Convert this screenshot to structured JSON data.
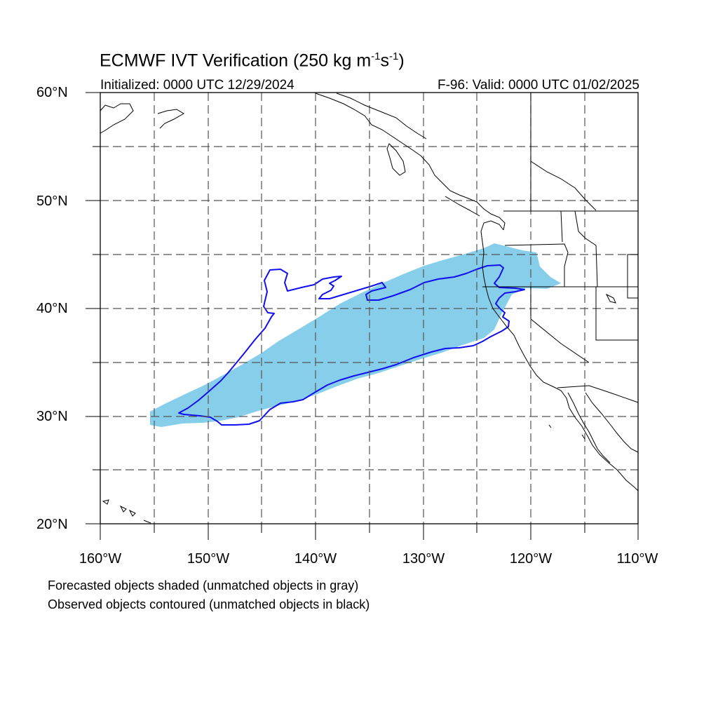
{
  "title": "ECMWF IVT Verification (250 kg m",
  "title_exp1": "-1",
  "title_mid": "s",
  "title_exp2": "-1",
  "title_end": ")",
  "initialized": "Initialized: 0000 UTC 12/29/2024",
  "valid": "F-96: Valid: 0000 UTC 01/02/2025",
  "lat_labels": [
    "60°N",
    "50°N",
    "40°N",
    "30°N",
    "20°N"
  ],
  "lon_labels": [
    "160°W",
    "150°W",
    "140°W",
    "130°W",
    "120°W",
    "110°W"
  ],
  "notes": [
    "Forecasted objects shaded (unmatched objects in gray)",
    "Observed objects contoured (unmatched objects in black)"
  ],
  "colors": {
    "forecast_fill": "#87ceeb",
    "observed_contour": "#1010ee",
    "grid": "#555555",
    "coast": "#000000"
  }
}
